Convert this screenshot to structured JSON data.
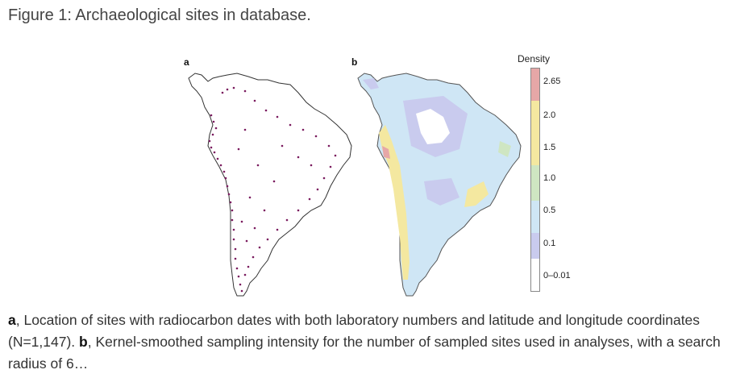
{
  "figure": {
    "title": "Figure 1: Archaeological sites in database."
  },
  "panels": {
    "a_label": "a",
    "b_label": "b"
  },
  "legend": {
    "title": "Density",
    "ticks": [
      "2.65",
      "2.0",
      "1.5",
      "1.0",
      "0.5",
      "0.1",
      "0–0.01"
    ],
    "colors": {
      "top": "#e6a7a7",
      "yellow": "#f4e8a0",
      "green": "#cfe6c2",
      "light_blue": "#cfe6f5",
      "lavender": "#c9cbee",
      "white": "#ffffff"
    }
  },
  "caption": {
    "a_label": "a",
    "a_text": ", Location of sites with radiocarbon dates with both laboratory numbers and latitude and longitude coordinates (N=1,147). ",
    "b_label": "b",
    "b_text": ", Kernel-smoothed sampling intensity for the number of sampled sites used in analyses, with a search radius of 6…"
  }
}
